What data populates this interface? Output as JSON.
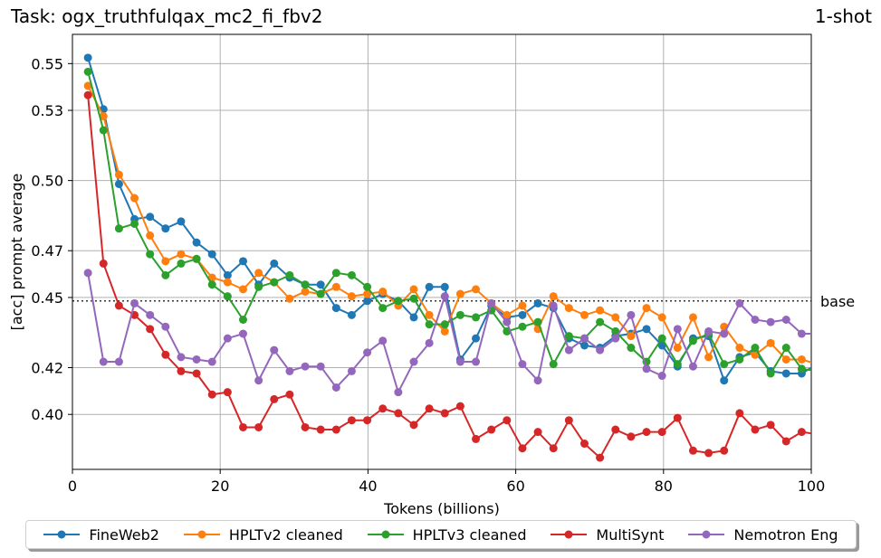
{
  "header": {
    "task_title": "Task: ogx_truthfulqax_mc2_fi_fbv2",
    "shot_label": "1-shot"
  },
  "chart_data": {
    "type": "line",
    "xlabel": "Tokens (billions)",
    "ylabel": "[acc] prompt average",
    "xlim": [
      0,
      100
    ],
    "ylim": [
      0.3765,
      0.5625
    ],
    "x_ticks": [
      0,
      20,
      40,
      60,
      80,
      100
    ],
    "y_ticks": [
      0.4,
      0.42,
      0.45,
      0.47,
      0.5,
      0.53,
      0.55
    ],
    "y_tick_labels": [
      "0.40",
      "0.42",
      "0.45",
      "0.47",
      "0.50",
      "0.53",
      "0.55"
    ],
    "grid": true,
    "legend_position": "bottom",
    "baseline": {
      "label": "base",
      "value": 0.4485
    },
    "x": [
      2.1,
      4.2,
      6.3,
      8.4,
      10.5,
      12.6,
      14.7,
      16.8,
      18.9,
      21.0,
      23.1,
      25.2,
      27.3,
      29.4,
      31.5,
      33.6,
      35.7,
      37.8,
      39.9,
      42.0,
      44.1,
      46.2,
      48.3,
      50.4,
      52.5,
      54.6,
      56.7,
      58.8,
      60.9,
      63.0,
      65.1,
      67.2,
      69.3,
      71.4,
      73.5,
      75.6,
      77.7,
      79.8,
      81.9,
      84.0,
      86.1,
      88.2,
      90.3,
      92.4,
      94.5,
      96.6,
      98.7,
      100.8
    ],
    "series": [
      {
        "name": "FineWeb2",
        "color": "#1f77b4",
        "values": [
          0.5525,
          0.5305,
          0.4985,
          0.4835,
          0.4845,
          0.4795,
          0.4825,
          0.4735,
          0.4685,
          0.4595,
          0.4655,
          0.4555,
          0.4645,
          0.4585,
          0.4555,
          0.4555,
          0.4455,
          0.4425,
          0.4485,
          0.4515,
          0.4485,
          0.4415,
          0.4545,
          0.4545,
          0.4235,
          0.4325,
          0.4465,
          0.4415,
          0.4425,
          0.4475,
          0.4455,
          0.4325,
          0.4295,
          0.4285,
          0.4335,
          0.4345,
          0.4365,
          0.4295,
          0.4205,
          0.4325,
          0.4335,
          0.4145,
          0.4245,
          0.4265,
          0.4185,
          0.4175,
          0.4175,
          0.4215
        ]
      },
      {
        "name": "HPLTv2 cleaned",
        "color": "#ff7f0e",
        "values": [
          0.5405,
          0.5275,
          0.5025,
          0.4925,
          0.4765,
          0.4655,
          0.4685,
          0.4665,
          0.4585,
          0.4565,
          0.4535,
          0.4605,
          0.4565,
          0.4495,
          0.4525,
          0.4515,
          0.4545,
          0.4505,
          0.4515,
          0.4525,
          0.4465,
          0.4535,
          0.4425,
          0.4355,
          0.4515,
          0.4535,
          0.4475,
          0.4425,
          0.4465,
          0.4365,
          0.4505,
          0.4455,
          0.4425,
          0.4445,
          0.4415,
          0.4335,
          0.4455,
          0.4415,
          0.4285,
          0.4415,
          0.4245,
          0.4375,
          0.4285,
          0.4255,
          0.4305,
          0.4235,
          0.4235,
          0.4215
        ]
      },
      {
        "name": "HPLTv3 cleaned",
        "color": "#2ca02c",
        "values": [
          0.5465,
          0.5215,
          0.4795,
          0.4815,
          0.4685,
          0.4595,
          0.4645,
          0.4665,
          0.4555,
          0.4505,
          0.4405,
          0.4545,
          0.4565,
          0.4595,
          0.4555,
          0.4515,
          0.4605,
          0.4595,
          0.4545,
          0.4455,
          0.4485,
          0.4495,
          0.4385,
          0.4385,
          0.4425,
          0.4415,
          0.4445,
          0.4355,
          0.4375,
          0.4395,
          0.4215,
          0.4335,
          0.4325,
          0.4395,
          0.4355,
          0.4285,
          0.4225,
          0.4325,
          0.4215,
          0.4315,
          0.4345,
          0.4215,
          0.4235,
          0.4285,
          0.4175,
          0.4285,
          0.4195,
          0.4185
        ]
      },
      {
        "name": "MultiSynt",
        "color": "#d62728",
        "values": [
          0.5365,
          0.4645,
          0.4465,
          0.4425,
          0.4365,
          0.4255,
          0.4185,
          0.4175,
          0.4085,
          0.4095,
          0.3945,
          0.3945,
          0.4065,
          0.4085,
          0.3945,
          0.3935,
          0.3935,
          0.3975,
          0.3975,
          0.4025,
          0.4005,
          0.3955,
          0.4025,
          0.4005,
          0.4035,
          0.3895,
          0.3935,
          0.3975,
          0.3855,
          0.3925,
          0.3855,
          0.3975,
          0.3875,
          0.3815,
          0.3935,
          0.3905,
          0.3925,
          0.3925,
          0.3985,
          0.3845,
          0.3835,
          0.3845,
          0.4005,
          0.3935,
          0.3955,
          0.3885,
          0.3925,
          0.3915
        ]
      },
      {
        "name": "Nemotron Eng",
        "color": "#9467bd",
        "values": [
          0.4605,
          0.4225,
          0.4225,
          0.4475,
          0.4425,
          0.4375,
          0.4245,
          0.4235,
          0.4225,
          0.4325,
          0.4345,
          0.4145,
          0.4275,
          0.4185,
          0.4205,
          0.4205,
          0.4115,
          0.4185,
          0.4265,
          0.4315,
          0.4095,
          0.4225,
          0.4305,
          0.4505,
          0.4225,
          0.4225,
          0.4475,
          0.4395,
          0.4215,
          0.4145,
          0.4465,
          0.4275,
          0.4325,
          0.4275,
          0.4325,
          0.4425,
          0.4195,
          0.4165,
          0.4365,
          0.4205,
          0.4355,
          0.4345,
          0.4475,
          0.4405,
          0.4395,
          0.4405,
          0.4345,
          0.4345
        ]
      }
    ]
  }
}
